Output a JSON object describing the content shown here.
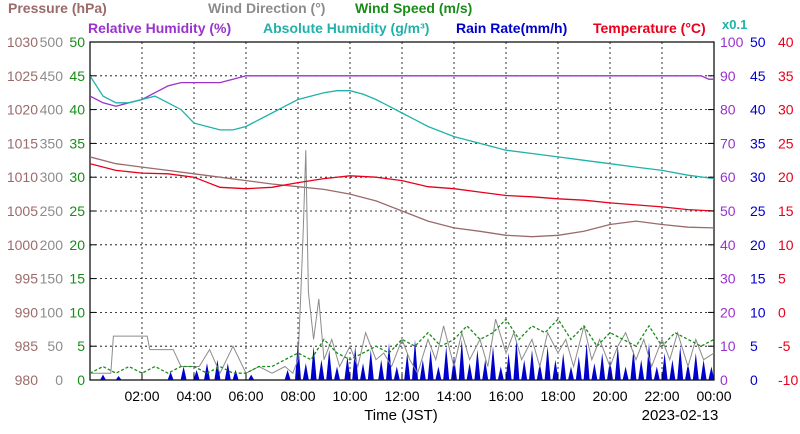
{
  "chart_data": {
    "type": "line",
    "legend": {
      "row1": [
        {
          "key": "pressure",
          "label": "Pressure (hPa)",
          "color": "#9b6b6b"
        },
        {
          "key": "wind_dir",
          "label": "Wind Direction (°)",
          "color": "#8c8c8c"
        },
        {
          "key": "wind_speed",
          "label": "Wind Speed (m/s)",
          "color": "#1a8c1a"
        }
      ],
      "row2": [
        {
          "key": "rh",
          "label": "Relative Humidity (%)",
          "color": "#9933cc"
        },
        {
          "key": "ah",
          "label": "Absolute Humidity (g/m³)",
          "color": "#20b2aa"
        },
        {
          "key": "rain",
          "label": "Rain Rate(mm/h)",
          "color": "#0000cc"
        },
        {
          "key": "temp",
          "label": "Temperature (°C)",
          "color": "#e8001c"
        }
      ],
      "ah_scale_note": "x0.1"
    },
    "xlabel": "Time (JST)",
    "date": "2023-02-13",
    "x_range_hours": [
      0,
      24
    ],
    "x_ticks": [
      "02:00",
      "04:00",
      "06:00",
      "08:00",
      "10:00",
      "12:00",
      "14:00",
      "16:00",
      "18:00",
      "20:00",
      "22:00",
      "00:00"
    ],
    "x_tick_hours": [
      2,
      4,
      6,
      8,
      10,
      12,
      14,
      16,
      18,
      20,
      22,
      24
    ],
    "left_axes": [
      {
        "key": "pressure",
        "color": "#9b6b6b",
        "ticks": [
          980,
          985,
          990,
          995,
          1000,
          1005,
          1010,
          1015,
          1020,
          1025,
          1030
        ]
      },
      {
        "key": "wind_dir",
        "color": "#8c8c8c",
        "ticks": [
          0,
          50,
          100,
          150,
          200,
          250,
          300,
          350,
          400,
          450,
          500
        ]
      },
      {
        "key": "wind_speed",
        "color": "#1a8c1a",
        "ticks": [
          0,
          5,
          10,
          15,
          20,
          25,
          30,
          35,
          40,
          45,
          50
        ]
      }
    ],
    "right_axes": [
      {
        "key": "rh",
        "color": "#9933cc",
        "ticks": [
          0,
          10,
          20,
          30,
          40,
          50,
          60,
          70,
          80,
          90,
          100
        ]
      },
      {
        "key": "rain",
        "color": "#0000cc",
        "ticks": [
          0,
          5,
          10,
          15,
          20,
          25,
          30,
          35,
          40,
          45,
          50
        ]
      },
      {
        "key": "temp",
        "color": "#e8001c",
        "ticks": [
          -10,
          -5,
          0,
          5,
          10,
          15,
          20,
          25,
          30,
          35,
          40
        ]
      }
    ],
    "grid": true,
    "series": [
      {
        "name": "Pressure (hPa)",
        "key": "pressure",
        "color": "#9b6b6b",
        "ylim": [
          980,
          1030
        ],
        "x": [
          0,
          1,
          2,
          3,
          4,
          5,
          6,
          7,
          8,
          9,
          10,
          11,
          12,
          13,
          14,
          15,
          16,
          17,
          18,
          19,
          20,
          21,
          22,
          23,
          24
        ],
        "y": [
          1013.0,
          1012.0,
          1011.5,
          1011.0,
          1010.5,
          1010.0,
          1009.5,
          1009.0,
          1008.6,
          1008.2,
          1007.5,
          1006.5,
          1005.0,
          1003.5,
          1002.5,
          1002.0,
          1001.4,
          1001.2,
          1001.4,
          1002.0,
          1003.0,
          1003.5,
          1003.0,
          1002.6,
          1002.5
        ]
      },
      {
        "name": "Wind Direction (°)",
        "key": "wind_dir",
        "color": "#8c8c8c",
        "ylim": [
          0,
          500
        ],
        "x": [
          0,
          0.8,
          0.9,
          2.2,
          2.3,
          3.2,
          3.5,
          4.2,
          4.6,
          5.0,
          5.5,
          6.0,
          6.5,
          7.0,
          7.5,
          7.8,
          8.0,
          8.1,
          8.2,
          8.3,
          8.4,
          8.6,
          8.8,
          9.0,
          9.3,
          9.6,
          10.0,
          10.3,
          10.6,
          11.0,
          11.3,
          11.6,
          12.0,
          12.3,
          12.6,
          13.0,
          13.3,
          13.6,
          14.0,
          14.3,
          14.6,
          15.0,
          15.3,
          15.6,
          16.0,
          16.3,
          16.6,
          17.0,
          17.3,
          17.6,
          18.0,
          18.3,
          18.6,
          19.0,
          19.3,
          19.6,
          20.0,
          20.3,
          20.6,
          21.0,
          21.3,
          21.6,
          22.0,
          22.3,
          22.6,
          23.0,
          23.3,
          23.6,
          24.0
        ],
        "y": [
          10,
          10,
          65,
          65,
          45,
          45,
          20,
          20,
          45,
          10,
          50,
          10,
          20,
          10,
          20,
          10,
          30,
          120,
          220,
          340,
          130,
          60,
          120,
          30,
          60,
          20,
          50,
          20,
          70,
          30,
          40,
          20,
          60,
          30,
          10,
          60,
          30,
          80,
          20,
          70,
          30,
          60,
          20,
          90,
          40,
          70,
          30,
          60,
          20,
          70,
          40,
          60,
          20,
          80,
          30,
          60,
          20,
          50,
          70,
          30,
          60,
          20,
          60,
          30,
          70,
          20,
          60,
          30,
          40
        ]
      },
      {
        "name": "Wind Speed (m/s)",
        "key": "wind_speed",
        "color": "#1a8c1a",
        "ylim": [
          0,
          50
        ],
        "x": [
          0,
          0.5,
          1.0,
          1.5,
          2.0,
          2.5,
          3.0,
          3.5,
          4.0,
          4.5,
          5.0,
          5.5,
          6.0,
          6.5,
          7.0,
          7.5,
          8.0,
          8.5,
          9.0,
          9.5,
          10.0,
          10.5,
          11.0,
          11.5,
          12.0,
          12.5,
          13.0,
          13.5,
          14.0,
          14.5,
          15.0,
          15.5,
          16.0,
          16.5,
          17.0,
          17.5,
          18.0,
          18.5,
          19.0,
          19.5,
          20.0,
          20.5,
          21.0,
          21.5,
          22.0,
          22.5,
          23.0,
          23.5,
          24.0
        ],
        "y": [
          1,
          2,
          1,
          2,
          1,
          2,
          1,
          2,
          2,
          1,
          2,
          1,
          1,
          2,
          2,
          3,
          4,
          3,
          6,
          4,
          3,
          4,
          5,
          4,
          6,
          5,
          7,
          5,
          6,
          8,
          6,
          7,
          9,
          6,
          8,
          7,
          9,
          6,
          8,
          5,
          7,
          6,
          5,
          8,
          5,
          7,
          6,
          5,
          6
        ]
      },
      {
        "name": "Relative Humidity (%)",
        "key": "rh",
        "color": "#9933cc",
        "ylim": [
          0,
          100
        ],
        "x": [
          0,
          0.5,
          1.0,
          1.5,
          2.0,
          2.5,
          3.0,
          3.5,
          4.0,
          4.5,
          5.0,
          5.5,
          6.0,
          6.5,
          7.0,
          8.0,
          10.0,
          12.0,
          14.0,
          16.0,
          18.0,
          20.0,
          22.0,
          23.0,
          23.5,
          23.8,
          24.0
        ],
        "y": [
          84,
          82,
          81,
          82,
          83,
          85,
          87,
          88,
          88,
          88,
          88,
          89,
          90,
          90,
          90,
          90,
          90,
          90,
          90,
          90,
          90,
          90,
          90,
          90,
          90,
          89,
          89
        ]
      },
      {
        "name": "Absolute Humidity (g/m³)",
        "key": "ah",
        "color": "#20b2aa",
        "ylim": [
          0,
          50
        ],
        "x": [
          0,
          0.5,
          1.0,
          1.5,
          2.0,
          2.5,
          3.0,
          3.5,
          4.0,
          4.5,
          5.0,
          5.5,
          6.0,
          6.5,
          7.0,
          7.5,
          8.0,
          8.5,
          9.0,
          9.5,
          10.0,
          10.5,
          11.0,
          11.5,
          12.0,
          12.5,
          13.0,
          14.0,
          15.0,
          16.0,
          17.0,
          18.0,
          19.0,
          20.0,
          21.0,
          22.0,
          23.0,
          24.0
        ],
        "y": [
          45,
          42,
          41,
          41,
          41.5,
          42,
          41,
          40,
          38,
          37.5,
          37,
          37,
          37.5,
          38.5,
          39.5,
          40.5,
          41.5,
          42,
          42.5,
          42.8,
          42.8,
          42.3,
          41.5,
          40.5,
          39.5,
          38.5,
          37.5,
          36,
          35,
          34,
          33.5,
          33,
          32.5,
          32,
          31.5,
          31,
          30.3,
          29.8
        ]
      },
      {
        "name": "Rain Rate(mm/h)",
        "key": "rain",
        "color": "#0000cc",
        "ylim": [
          0,
          50
        ],
        "x": [
          0.5,
          1.1,
          3.1,
          3.6,
          4.1,
          4.5,
          4.9,
          5.3,
          5.6,
          6.2,
          7.6,
          8.0,
          8.3,
          8.6,
          8.9,
          9.2,
          9.5,
          9.9,
          10.2,
          10.5,
          10.8,
          11.2,
          11.5,
          11.8,
          12.2,
          12.5,
          12.8,
          13.1,
          13.4,
          13.7,
          14.0,
          14.3,
          14.6,
          14.9,
          15.2,
          15.5,
          15.8,
          16.1,
          16.4,
          16.7,
          17.0,
          17.3,
          17.6,
          17.9,
          18.2,
          18.5,
          18.8,
          19.1,
          19.4,
          19.7,
          20.0,
          20.3,
          20.6,
          20.9,
          21.2,
          21.5,
          21.8,
          22.1,
          22.4,
          22.7,
          23.0,
          23.3,
          23.6,
          23.9
        ],
        "y": [
          0.8,
          0.6,
          1.2,
          2,
          1.5,
          2.5,
          3,
          2.5,
          1.5,
          0.8,
          1.5,
          6,
          2.5,
          5,
          3,
          4.5,
          2,
          3.5,
          5,
          2.5,
          4.5,
          3,
          5.5,
          2,
          4,
          6,
          3,
          4.5,
          2,
          5,
          3.5,
          6,
          2.5,
          4.5,
          3,
          5,
          2,
          4,
          6,
          3,
          4.5,
          2.5,
          5,
          3,
          4,
          2,
          3.5,
          5.5,
          2.5,
          4,
          3,
          5,
          2,
          4.5,
          3,
          5.5,
          2,
          4,
          3,
          5,
          2.5,
          4,
          3,
          2
        ]
      },
      {
        "name": "Temperature (°C)",
        "key": "temp",
        "color": "#e8001c",
        "ylim": [
          -10,
          40
        ],
        "x": [
          0,
          1,
          2,
          3,
          4,
          5,
          6,
          7,
          8,
          9,
          10,
          11,
          12,
          13,
          14,
          15,
          16,
          17,
          18,
          19,
          20,
          21,
          22,
          23,
          24
        ],
        "y": [
          22,
          21,
          20.6,
          20.5,
          20,
          18.5,
          18.3,
          18.5,
          19.2,
          19.8,
          20.2,
          20,
          19.5,
          18.6,
          18.3,
          17.8,
          17.3,
          17.1,
          16.8,
          16.6,
          16.2,
          15.9,
          15.6,
          15.2,
          15
        ]
      }
    ]
  }
}
